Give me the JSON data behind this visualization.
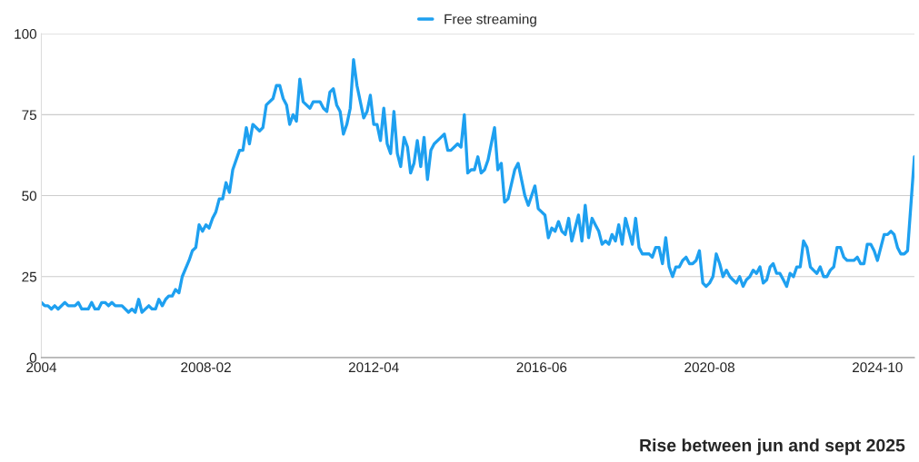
{
  "chart_data": {
    "type": "line",
    "x": [
      "2004-01",
      "2004-02",
      "2004-03",
      "2004-04",
      "2004-05",
      "2004-06",
      "2004-08",
      "2004-09",
      "2004-11",
      "2004-12",
      "2005-01",
      "2005-03",
      "2005-04",
      "2005-05",
      "2005-06",
      "2005-07",
      "2005-08",
      "2005-09",
      "2005-10",
      "2005-11",
      "2006-01",
      "2006-03",
      "2006-04",
      "2006-05",
      "2006-06",
      "2006-07",
      "2006-09",
      "2006-10",
      "2006-11",
      "2006-12",
      "2007-01",
      "2007-02",
      "2007-03",
      "2007-04",
      "2007-05",
      "2007-06",
      "2007-07",
      "2007-09",
      "2007-10",
      "2007-11",
      "2007-12",
      "2008-01",
      "2008-02",
      "2008-03",
      "2008-04",
      "2008-05",
      "2008-06",
      "2008-07",
      "2008-08",
      "2008-09",
      "2008-10",
      "2008-12",
      "2009-01",
      "2009-02",
      "2009-03",
      "2009-04",
      "2009-06",
      "2009-07",
      "2009-08",
      "2009-10",
      "2009-11",
      "2009-12",
      "2010-01",
      "2010-02",
      "2010-03",
      "2010-04",
      "2010-05",
      "2010-06",
      "2010-07",
      "2010-09",
      "2010-10",
      "2010-12",
      "2011-01",
      "2011-02",
      "2011-03",
      "2011-04",
      "2011-05",
      "2011-06",
      "2011-07",
      "2011-08",
      "2011-09",
      "2011-10",
      "2011-11",
      "2012-01",
      "2012-02",
      "2012-03",
      "2012-04",
      "2012-05",
      "2012-06",
      "2012-07",
      "2012-08",
      "2012-09",
      "2012-10",
      "2012-11",
      "2012-12",
      "2013-01",
      "2013-02",
      "2013-03",
      "2013-04",
      "2013-05",
      "2013-06",
      "2013-07",
      "2013-08",
      "2013-09",
      "2013-10",
      "2013-12",
      "2014-01",
      "2014-02",
      "2014-03",
      "2014-05",
      "2014-06",
      "2014-07",
      "2014-08",
      "2014-09",
      "2014-10",
      "2014-11",
      "2014-12",
      "2015-01",
      "2015-02",
      "2015-04",
      "2015-05",
      "2015-06",
      "2015-07",
      "2015-08",
      "2015-10",
      "2015-11",
      "2016-01",
      "2016-02",
      "2016-04",
      "2016-05",
      "2016-07",
      "2016-08",
      "2016-09",
      "2016-10",
      "2016-11",
      "2016-12",
      "2017-01",
      "2017-02",
      "2017-03",
      "2017-05",
      "2017-06",
      "2017-07",
      "2017-08",
      "2017-09",
      "2017-10",
      "2017-11",
      "2017-12",
      "2018-01",
      "2018-02",
      "2018-03",
      "2018-04",
      "2018-05",
      "2018-06",
      "2018-07",
      "2018-08",
      "2018-09",
      "2018-10",
      "2018-11",
      "2018-12",
      "2019-02",
      "2019-03",
      "2019-04",
      "2019-05",
      "2019-06",
      "2019-07",
      "2019-08",
      "2019-09",
      "2019-10",
      "2019-11",
      "2019-12",
      "2020-01",
      "2020-02",
      "2020-03",
      "2020-04",
      "2020-05",
      "2020-06",
      "2020-07",
      "2020-08",
      "2020-09",
      "2020-10",
      "2020-11",
      "2020-12",
      "2021-01",
      "2021-02",
      "2021-03",
      "2021-04",
      "2021-05",
      "2021-06",
      "2021-07",
      "2021-08",
      "2021-09",
      "2021-10",
      "2021-11",
      "2021-12",
      "2022-01",
      "2022-02",
      "2022-03",
      "2022-04",
      "2022-05",
      "2022-06",
      "2022-07",
      "2022-08",
      "2022-09",
      "2022-10",
      "2022-11",
      "2022-12",
      "2023-01",
      "2023-02",
      "2023-03",
      "2023-04",
      "2023-05",
      "2023-06",
      "2023-07",
      "2023-08",
      "2023-09",
      "2023-10",
      "2023-11",
      "2023-12",
      "2024-01",
      "2024-03",
      "2024-04",
      "2024-05",
      "2024-06",
      "2024-07",
      "2024-08",
      "2024-09",
      "2024-10",
      "2024-12",
      "2025-01",
      "2025-02",
      "2025-03",
      "2025-04",
      "2025-05",
      "2025-06",
      "2025-07",
      "2025-09"
    ],
    "series": [
      {
        "name": "Free streaming",
        "color": "#1ea0f0",
        "values": [
          17,
          16,
          16,
          15,
          16,
          15,
          17,
          16,
          16,
          17,
          15,
          15,
          17,
          15,
          15,
          17,
          17,
          16,
          17,
          16,
          16,
          14,
          15,
          14,
          18,
          14,
          16,
          15,
          15,
          18,
          16,
          18,
          19,
          19,
          21,
          20,
          25,
          30,
          33,
          34,
          41,
          39,
          41,
          40,
          43,
          45,
          49,
          49,
          54,
          51,
          58,
          64,
          64,
          71,
          66,
          72,
          70,
          71,
          78,
          80,
          84,
          84,
          80,
          78,
          72,
          75,
          73,
          86,
          79,
          77,
          79,
          79,
          77,
          76,
          82,
          83,
          78,
          76,
          69,
          72,
          77,
          92,
          84,
          74,
          76,
          81,
          72,
          72,
          67,
          77,
          66,
          63,
          76,
          63,
          59,
          68,
          65,
          57,
          60,
          67,
          59,
          68,
          55,
          64,
          66,
          68,
          69,
          64,
          64,
          66,
          65,
          75,
          57,
          58,
          58,
          62,
          57,
          58,
          61,
          71,
          58,
          60,
          48,
          49,
          58,
          60,
          50,
          47,
          53,
          46,
          44,
          37,
          40,
          39,
          42,
          39,
          38,
          43,
          36,
          44,
          36,
          47,
          37,
          43,
          41,
          39,
          35,
          36,
          35,
          38,
          36,
          41,
          35,
          43,
          39,
          35,
          43,
          34,
          32,
          32,
          31,
          34,
          34,
          29,
          37,
          28,
          25,
          28,
          28,
          30,
          31,
          29,
          29,
          30,
          33,
          23,
          22,
          23,
          25,
          32,
          29,
          25,
          27,
          25,
          24,
          23,
          25,
          22,
          24,
          25,
          27,
          26,
          28,
          23,
          24,
          28,
          29,
          26,
          26,
          24,
          22,
          26,
          25,
          28,
          28,
          36,
          34,
          28,
          27,
          26,
          28,
          25,
          25,
          27,
          28,
          34,
          34,
          31,
          30,
          30,
          31,
          29,
          29,
          35,
          35,
          33,
          30,
          38,
          38,
          39,
          38,
          34,
          32,
          32,
          33,
          62
        ]
      }
    ],
    "xlim": [
      "2004-01",
      "2025-09"
    ],
    "xticks": [
      {
        "value": "2004-01",
        "label": "2004"
      },
      {
        "value": "2008-02",
        "label": "2008-02"
      },
      {
        "value": "2012-04",
        "label": "2012-04"
      },
      {
        "value": "2016-06",
        "label": "2016-06"
      },
      {
        "value": "2020-08",
        "label": "2020-08"
      },
      {
        "value": "2024-10",
        "label": "2024-10"
      }
    ],
    "ylim": [
      0,
      100
    ],
    "yticks": [
      0,
      25,
      50,
      75,
      100
    ],
    "grid": "y",
    "legend": "top",
    "line_style": "solid",
    "marker": "none",
    "annotations": [
      "Rise between jun and sept 2025"
    ]
  }
}
